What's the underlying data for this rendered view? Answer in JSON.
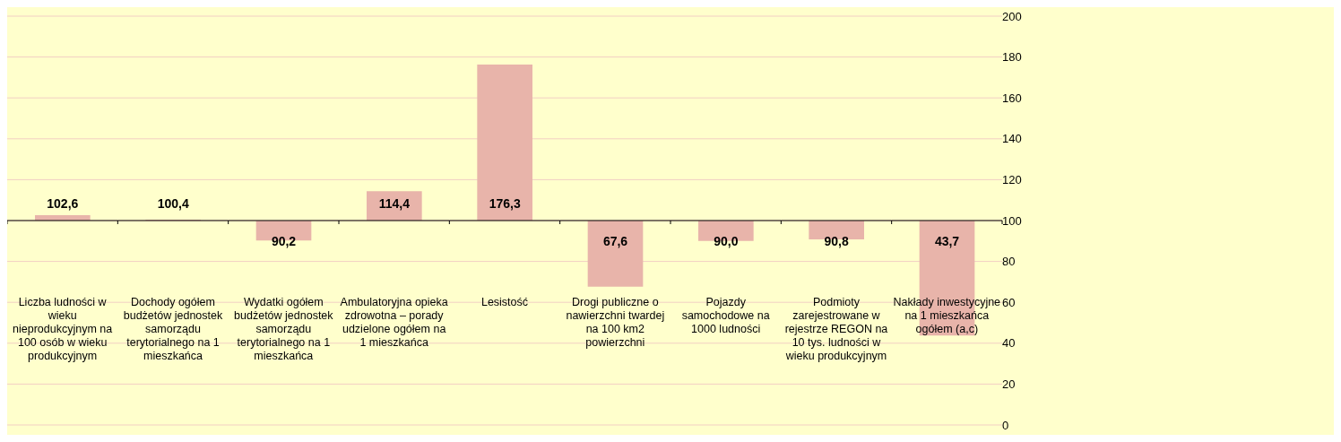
{
  "chart_data": {
    "type": "bar",
    "categories": [
      "Liczba ludności w wieku nieprodukcyjnym na 100 osób w wieku produkcyjnym",
      "Dochody ogółem budżetów jednostek samorządu terytorialnego na 1 mieszkańca",
      "Wydatki ogółem budżetów jednostek samorządu terytorialnego na 1 mieszkańca",
      "Ambulatoryjna opieka zdrowotna – porady udzielone ogółem na 1 mieszkańca",
      "Lesistość",
      "Drogi publiczne o nawierzchni twardej na 100 km2 powierzchni",
      "Pojazdy samochodowe na 1000 ludności",
      "Podmioty zarejestrowane w rejestrze REGON na 10 tys. ludności w wieku produkcyjnym",
      "Nakłady inwestycyjne na 1 mieszkańca ogółem (a,c)"
    ],
    "base": [
      100,
      100,
      100,
      100,
      100,
      100,
      100,
      100,
      100
    ],
    "values": [
      2.6,
      0.4,
      -9.8,
      14.4,
      76.3,
      -32.4,
      -10.0,
      -9.2,
      -56.3
    ],
    "value_labels": [
      "102,6",
      "100,4",
      "90,2",
      "114,4",
      "176,3",
      "67,6",
      "90,0",
      "90,8",
      "43,7"
    ],
    "color": "#e8b4aa",
    "ylim": [
      0,
      200
    ],
    "yticks": [
      0,
      20,
      40,
      60,
      80,
      100,
      120,
      140,
      160,
      180,
      200
    ],
    "grid": "y"
  }
}
